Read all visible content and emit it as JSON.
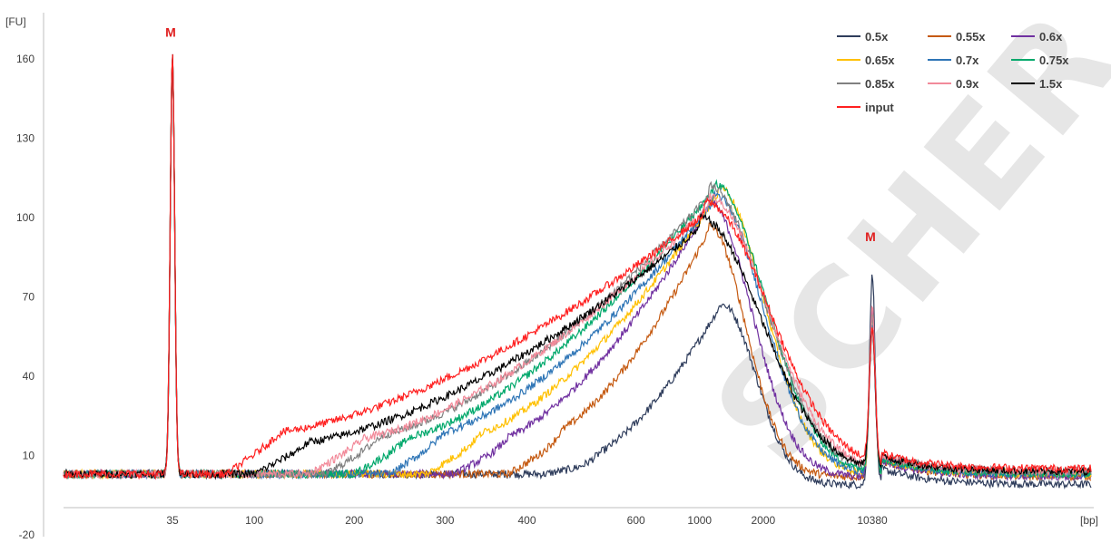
{
  "chart_data": {
    "type": "line",
    "y_unit": "[FU]",
    "x_unit": "[bp]",
    "ylim": [
      -20,
      170
    ],
    "y_ticks": [
      -20,
      10,
      40,
      70,
      100,
      130,
      160
    ],
    "x_ticks": [
      {
        "label": "35",
        "t": 0.0
      },
      {
        "label": "100",
        "t": 0.09
      },
      {
        "label": "200",
        "t": 0.2
      },
      {
        "label": "300",
        "t": 0.3
      },
      {
        "label": "400",
        "t": 0.39
      },
      {
        "label": "600",
        "t": 0.51
      },
      {
        "label": "1000",
        "t": 0.58
      },
      {
        "label": "2000",
        "t": 0.65
      },
      {
        "label": "10380",
        "t": 0.77
      }
    ],
    "markers": [
      {
        "label": "M",
        "t": 0.0,
        "y": 163
      },
      {
        "label": "M",
        "t": 0.77,
        "y": 89
      }
    ],
    "legend_position": "top-right",
    "watermark": "SCHER SA",
    "series": [
      {
        "name": "0.5x",
        "color": "#2f3d5c",
        "peak_t": 0.605,
        "peak_y": 68,
        "width": 0.055,
        "tail_t": 0.44,
        "tail_y": 7,
        "end_y": -1,
        "marker_y": 89
      },
      {
        "name": "0.55x",
        "color": "#c55a11",
        "peak_t": 0.59,
        "peak_y": 95,
        "width": 0.06,
        "tail_t": 0.4,
        "tail_y": 16,
        "end_y": 2,
        "marker_y": 73
      },
      {
        "name": "0.6x",
        "color": "#7030a0",
        "peak_t": 0.59,
        "peak_y": 104,
        "width": 0.07,
        "tail_t": 0.34,
        "tail_y": 14,
        "end_y": 2,
        "marker_y": 74
      },
      {
        "name": "0.65x",
        "color": "#ffc000",
        "peak_t": 0.6,
        "peak_y": 109,
        "width": 0.075,
        "tail_t": 0.31,
        "tail_y": 16,
        "end_y": 3,
        "marker_y": 70
      },
      {
        "name": "0.7x",
        "color": "#2e75b6",
        "peak_t": 0.595,
        "peak_y": 106,
        "width": 0.08,
        "tail_t": 0.27,
        "tail_y": 17,
        "end_y": 3,
        "marker_y": 66
      },
      {
        "name": "0.75x",
        "color": "#00a86b",
        "peak_t": 0.595,
        "peak_y": 110,
        "width": 0.085,
        "tail_t": 0.23,
        "tail_y": 15,
        "end_y": 3,
        "marker_y": 70
      },
      {
        "name": "0.85x",
        "color": "#808080",
        "peak_t": 0.59,
        "peak_y": 108,
        "width": 0.09,
        "tail_t": 0.2,
        "tail_y": 16,
        "end_y": 4,
        "marker_y": 67
      },
      {
        "name": "0.9x",
        "color": "#f28a9a",
        "peak_t": 0.59,
        "peak_y": 104,
        "width": 0.095,
        "tail_t": 0.18,
        "tail_y": 15,
        "end_y": 4,
        "marker_y": 70
      },
      {
        "name": "1.5x",
        "color": "#000000",
        "peak_t": 0.58,
        "peak_y": 96,
        "width": 0.1,
        "tail_t": 0.12,
        "tail_y": 14,
        "end_y": 4,
        "marker_y": 63
      },
      {
        "name": "input",
        "color": "#ff2020",
        "peak_t": 0.585,
        "peak_y": 101,
        "width": 0.105,
        "tail_t": 0.09,
        "tail_y": 18,
        "end_y": 5,
        "marker_y": 60
      }
    ]
  }
}
